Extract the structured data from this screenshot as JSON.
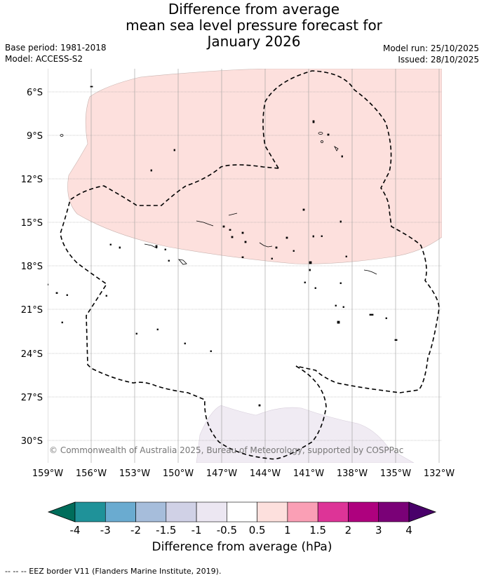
{
  "title_lines": [
    "Difference from average",
    "mean sea level pressure forecast for",
    "January 2026"
  ],
  "base_period": "Base period: 1981-2018",
  "model": "Model: ACCESS-S2",
  "model_run": "Model run: 25/10/2025",
  "issued": "Issued: 28/10/2025",
  "copyright": "© Commonwealth of Australia 2025, Bureau of Meteorology, supported by COSPPac",
  "lat_labels": [
    "6°S",
    "9°S",
    "12°S",
    "15°S",
    "18°S",
    "21°S",
    "24°S",
    "27°S",
    "30°S"
  ],
  "lon_labels": [
    "159°W",
    "156°W",
    "153°W",
    "150°W",
    "147°W",
    "144°W",
    "141°W",
    "138°W",
    "135°W",
    "132°W"
  ],
  "colorbar": {
    "label": "Difference from average (hPa)",
    "tick_labels": [
      "-4",
      "-3",
      "-2",
      "-1.5",
      "-1",
      "-0.5",
      "0.5",
      "1",
      "1.5",
      "2",
      "3",
      "4"
    ],
    "colors": [
      "#006d5b",
      "#1f9299",
      "#6aabd0",
      "#a6bddb",
      "#d0d1e6",
      "#ece7f2",
      "#ffffff",
      "#fde0dd",
      "#fa9fb5",
      "#dd3497",
      "#ae017e",
      "#7a0177",
      "#49006a"
    ]
  },
  "legend_note": "-- -- -- EEZ border V11 (Flanders Marine Institute, 2019)."
}
